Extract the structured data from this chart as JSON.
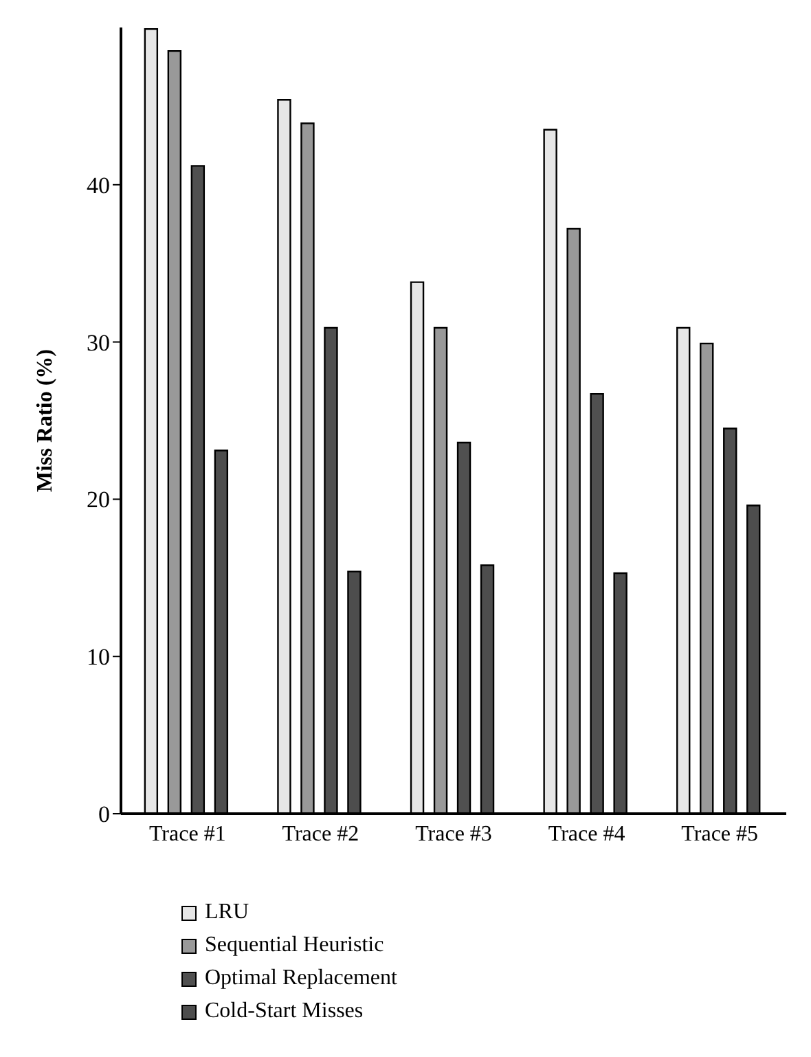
{
  "chart_data": {
    "type": "bar",
    "ylabel": "Miss Ratio (%)",
    "categories": [
      "Trace #1",
      "Trace #2",
      "Trace #3",
      "Trace #4",
      "Trace #5"
    ],
    "series": [
      {
        "name": "LRU",
        "color": "#e6e6e6",
        "values": [
          49.9,
          45.4,
          33.8,
          43.5,
          30.9
        ]
      },
      {
        "name": "Sequential Heuristic",
        "color": "#999999",
        "values": [
          48.5,
          43.9,
          30.9,
          37.2,
          29.9
        ]
      },
      {
        "name": "Optimal Replacement",
        "color": "#505050",
        "values": [
          41.2,
          30.9,
          23.6,
          26.7,
          24.5
        ]
      },
      {
        "name": "Cold-Start Misses",
        "color": "#4d4d4d",
        "values": [
          23.1,
          15.4,
          15.8,
          15.3,
          19.6
        ]
      }
    ],
    "ylim": [
      0,
      50
    ],
    "yticks": [
      0,
      10,
      20,
      30,
      40
    ],
    "grid": false,
    "legend": "bottom left"
  }
}
